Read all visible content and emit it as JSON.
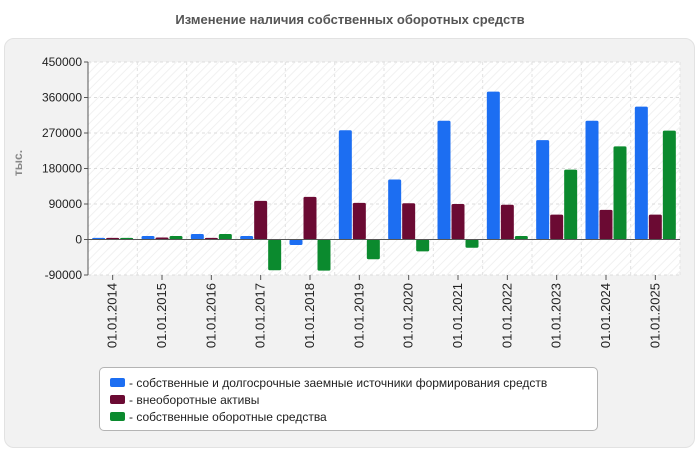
{
  "chart_data": {
    "type": "bar",
    "title": "Изменение наличия собственных оборотных средств",
    "xlabel": "",
    "ylabel": "тыс.",
    "ylim": [
      -90000,
      450000
    ],
    "yticks": [
      -90000,
      0,
      90000,
      180000,
      270000,
      360000,
      450000
    ],
    "ytick_labels": [
      "-90000",
      "0",
      "90000",
      "180000",
      "270000",
      "360000",
      "450000"
    ],
    "grid": true,
    "legend_position": "bottom",
    "categories": [
      "01.01.2014",
      "01.01.2015",
      "01.01.2016",
      "01.01.2017",
      "01.01.2018",
      "01.01.2019",
      "01.01.2020",
      "01.01.2021",
      "01.01.2022",
      "01.01.2023",
      "01.01.2024",
      "01.01.2025"
    ],
    "series": [
      {
        "name": "- собственные и долгосрочные заемные источники формирования средств",
        "color": "#1c6ef2",
        "values": [
          4000,
          9000,
          14000,
          9000,
          -14000,
          277000,
          152000,
          301000,
          375000,
          252000,
          301000,
          337000
        ]
      },
      {
        "name": "- внеоборотные активы",
        "color": "#6b0a33",
        "values": [
          4000,
          5000,
          4000,
          98000,
          108000,
          93000,
          92000,
          90000,
          88000,
          63000,
          75000,
          63000
        ]
      },
      {
        "name": "- собственные оборотные средства",
        "color": "#0b8a2e",
        "values": [
          4000,
          9000,
          14000,
          -78000,
          -79000,
          -50000,
          -30000,
          -21000,
          9000,
          177000,
          236000,
          276000
        ]
      }
    ]
  }
}
